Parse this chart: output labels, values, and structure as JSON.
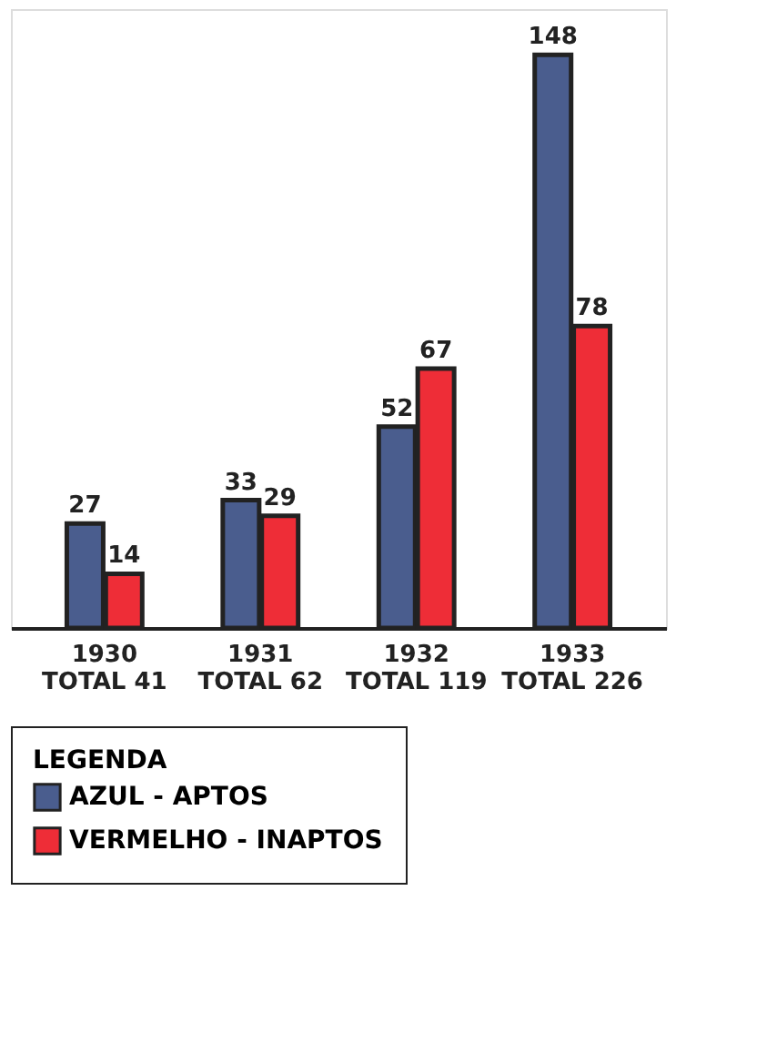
{
  "chart_data": {
    "type": "bar",
    "categories": [
      "1930\nTOTAL 41",
      "1931\nTOTAL 62",
      "1932\nTOTAL 119",
      "1933\nTOTAL 226"
    ],
    "series": [
      {
        "name": "AZUL - APTOS",
        "color": "#4a5d8e",
        "values": [
          27,
          33,
          52,
          148
        ]
      },
      {
        "name": "VERMELHO - INAPTOS",
        "color": "#ee2d37",
        "values": [
          14,
          29,
          67,
          78
        ]
      }
    ],
    "data_labels": true,
    "legend": "bottom",
    "legend_title": "LEGENDA",
    "tick_labels": "x",
    "grid": false
  }
}
